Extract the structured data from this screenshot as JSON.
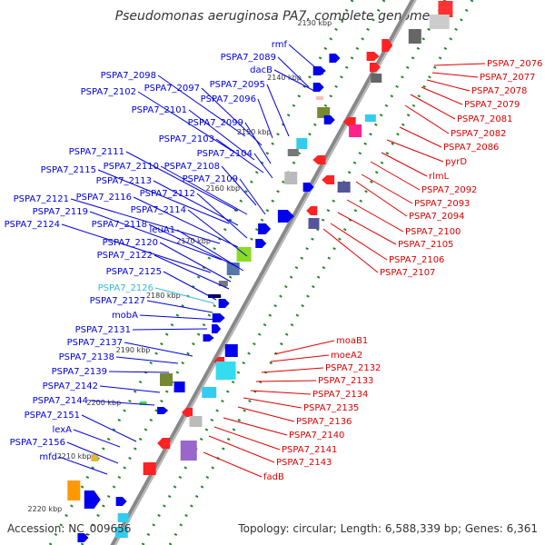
{
  "title": "Pseudomonas aeruginosa PA7, complete genome",
  "footer": {
    "accession": "Accession: NC_009656",
    "topology": "Topology: circular; Length: 6,588,339 bp; Genes: 6,361"
  },
  "colors": {
    "plus_strand": "#0000dd",
    "minus_strand": "#dd0000",
    "highlight": "#33bbdd",
    "backbone": "#888888",
    "ticks": "#228822"
  },
  "scale_labels": [
    "2130 kbp",
    "2140 kbp",
    "2150 kbp",
    "2160 kbp",
    "2170 kbp",
    "2180 kbp",
    "2190 kbp",
    "2200 kbp",
    "2210 kbp",
    "2220 kbp"
  ],
  "left_labels": [
    "rmf",
    "PSPA7_2089",
    "dacB",
    "PSPA7_2098",
    "PSPA7_2097",
    "PSPA7_2095",
    "PSPA7_2102",
    "PSPA7_2096",
    "PSPA7_2101",
    "PSPA7_2099",
    "PSPA7_2103",
    "PSPA7_2104",
    "PSPA7_2111",
    "PSPA7_2110",
    "PSPA7_2108",
    "PSPA7_2115",
    "PSPA7_2113",
    "PSPA7_2109",
    "PSPA7_2112",
    "PSPA7_2121",
    "PSPA7_2116",
    "PSPA7_2119",
    "PSPA7_2114",
    "PSPA7_2118",
    "PSPA7_2124",
    "leuA1",
    "PSPA7_2120",
    "PSPA7_2122",
    "PSPA7_2125",
    "PSPA7_2126",
    "PSPA7_2127",
    "mobA",
    "PSPA7_2131",
    "PSPA7_2137",
    "PSPA7_2138",
    "PSPA7_2139",
    "PSPA7_2142",
    "PSPA7_2144",
    "PSPA7_2151",
    "lexA",
    "PSPA7_2156",
    "mfd"
  ],
  "right_labels": [
    "PSPA7_2076",
    "PSPA7_2077",
    "PSPA7_2078",
    "PSPA7_2079",
    "PSPA7_2081",
    "PSPA7_2082",
    "PSPA7_2086",
    "pyrD",
    "rlmL",
    "PSPA7_2092",
    "PSPA7_2093",
    "PSPA7_2094",
    "PSPA7_2100",
    "PSPA7_2105",
    "PSPA7_2106",
    "PSPA7_2107",
    "moaB1",
    "moeA2",
    "PSPA7_2132",
    "PSPA7_2133",
    "PSPA7_2134",
    "PSPA7_2135",
    "PSPA7_2136",
    "PSPA7_2140",
    "PSPA7_2141",
    "PSPA7_2143",
    "fadB"
  ]
}
